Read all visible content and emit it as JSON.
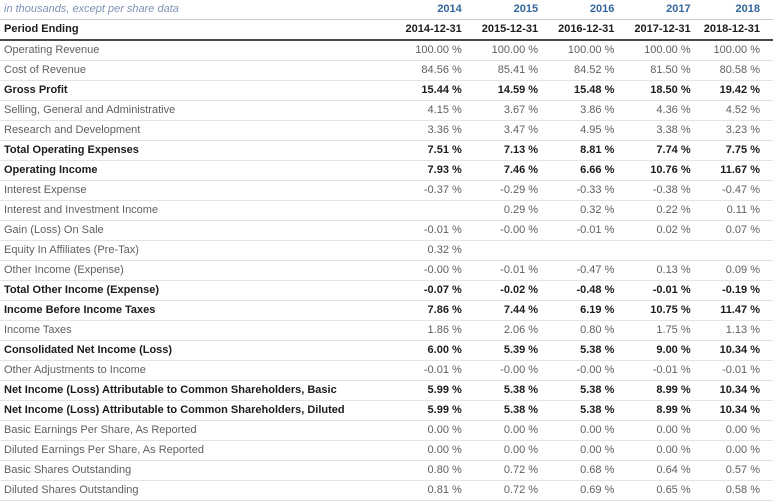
{
  "chart_data": {
    "type": "table",
    "caption": "in thousands, except per share data",
    "years": [
      "2014",
      "2015",
      "2016",
      "2017",
      "2018"
    ],
    "period_row": {
      "label": "Period Ending",
      "values": [
        "2014-12-31",
        "2015-12-31",
        "2016-12-31",
        "2017-12-31",
        "2018-12-31"
      ]
    },
    "rows": [
      {
        "label": "Operating Revenue",
        "bold": false,
        "values": [
          "100.00 %",
          "100.00 %",
          "100.00 %",
          "100.00 %",
          "100.00 %"
        ]
      },
      {
        "label": "Cost of Revenue",
        "bold": false,
        "values": [
          "84.56 %",
          "85.41 %",
          "84.52 %",
          "81.50 %",
          "80.58 %"
        ]
      },
      {
        "label": "Gross Profit",
        "bold": true,
        "values": [
          "15.44 %",
          "14.59 %",
          "15.48 %",
          "18.50 %",
          "19.42 %"
        ]
      },
      {
        "label": "Selling, General and Administrative",
        "bold": false,
        "values": [
          "4.15 %",
          "3.67 %",
          "3.86 %",
          "4.36 %",
          "4.52 %"
        ]
      },
      {
        "label": "Research and Development",
        "bold": false,
        "values": [
          "3.36 %",
          "3.47 %",
          "4.95 %",
          "3.38 %",
          "3.23 %"
        ]
      },
      {
        "label": "Total Operating Expenses",
        "bold": true,
        "values": [
          "7.51 %",
          "7.13 %",
          "8.81 %",
          "7.74 %",
          "7.75 %"
        ]
      },
      {
        "label": "Operating Income",
        "bold": true,
        "values": [
          "7.93 %",
          "7.46 %",
          "6.66 %",
          "10.76 %",
          "11.67 %"
        ]
      },
      {
        "label": "Interest Expense",
        "bold": false,
        "values": [
          "-0.37 %",
          "-0.29 %",
          "-0.33 %",
          "-0.38 %",
          "-0.47 %"
        ]
      },
      {
        "label": "Interest and Investment Income",
        "bold": false,
        "values": [
          "",
          "0.29 %",
          "0.32 %",
          "0.22 %",
          "0.11 %"
        ]
      },
      {
        "label": "Gain (Loss) On Sale",
        "bold": false,
        "values": [
          "-0.01 %",
          "-0.00 %",
          "-0.01 %",
          "0.02 %",
          "0.07 %"
        ]
      },
      {
        "label": "Equity In Affiliates (Pre-Tax)",
        "bold": false,
        "values": [
          "0.32 %",
          "",
          "",
          "",
          ""
        ]
      },
      {
        "label": "Other Income (Expense)",
        "bold": false,
        "values": [
          "-0.00 %",
          "-0.01 %",
          "-0.47 %",
          "0.13 %",
          "0.09 %"
        ]
      },
      {
        "label": "Total Other Income (Expense)",
        "bold": true,
        "values": [
          "-0.07 %",
          "-0.02 %",
          "-0.48 %",
          "-0.01 %",
          "-0.19 %"
        ]
      },
      {
        "label": "Income Before Income Taxes",
        "bold": true,
        "values": [
          "7.86 %",
          "7.44 %",
          "6.19 %",
          "10.75 %",
          "11.47 %"
        ]
      },
      {
        "label": "Income Taxes",
        "bold": false,
        "values": [
          "1.86 %",
          "2.06 %",
          "0.80 %",
          "1.75 %",
          "1.13 %"
        ]
      },
      {
        "label": "Consolidated Net Income (Loss)",
        "bold": true,
        "values": [
          "6.00 %",
          "5.39 %",
          "5.38 %",
          "9.00 %",
          "10.34 %"
        ]
      },
      {
        "label": "Other Adjustments to Income",
        "bold": false,
        "values": [
          "-0.01 %",
          "-0.00 %",
          "-0.00 %",
          "-0.01 %",
          "-0.01 %"
        ]
      },
      {
        "label": "Net Income (Loss) Attributable to Common Shareholders, Basic",
        "bold": true,
        "values": [
          "5.99 %",
          "5.38 %",
          "5.38 %",
          "8.99 %",
          "10.34 %"
        ]
      },
      {
        "label": "Net Income (Loss) Attributable to Common Shareholders, Diluted",
        "bold": true,
        "values": [
          "5.99 %",
          "5.38 %",
          "5.38 %",
          "8.99 %",
          "10.34 %"
        ]
      },
      {
        "label": "Basic Earnings Per Share, As Reported",
        "bold": false,
        "values": [
          "0.00 %",
          "0.00 %",
          "0.00 %",
          "0.00 %",
          "0.00 %"
        ]
      },
      {
        "label": "Diluted Earnings Per Share, As Reported",
        "bold": false,
        "values": [
          "0.00 %",
          "0.00 %",
          "0.00 %",
          "0.00 %",
          "0.00 %"
        ]
      },
      {
        "label": "Basic Shares Outstanding",
        "bold": false,
        "values": [
          "0.80 %",
          "0.72 %",
          "0.68 %",
          "0.64 %",
          "0.57 %"
        ]
      },
      {
        "label": "Diluted Shares Outstanding",
        "bold": false,
        "values": [
          "0.81 %",
          "0.72 %",
          "0.69 %",
          "0.65 %",
          "0.58 %"
        ]
      }
    ]
  },
  "colors": {
    "year_link": "#336699",
    "caption_text": "#7d92b4",
    "bold_text": "#1c1c1c",
    "regular_text": "#5f5f5f",
    "row_border": "#e4e4e4",
    "caption_border": "#c9ced3",
    "period_border": "#4a4a4a",
    "background": "#ffffff"
  }
}
